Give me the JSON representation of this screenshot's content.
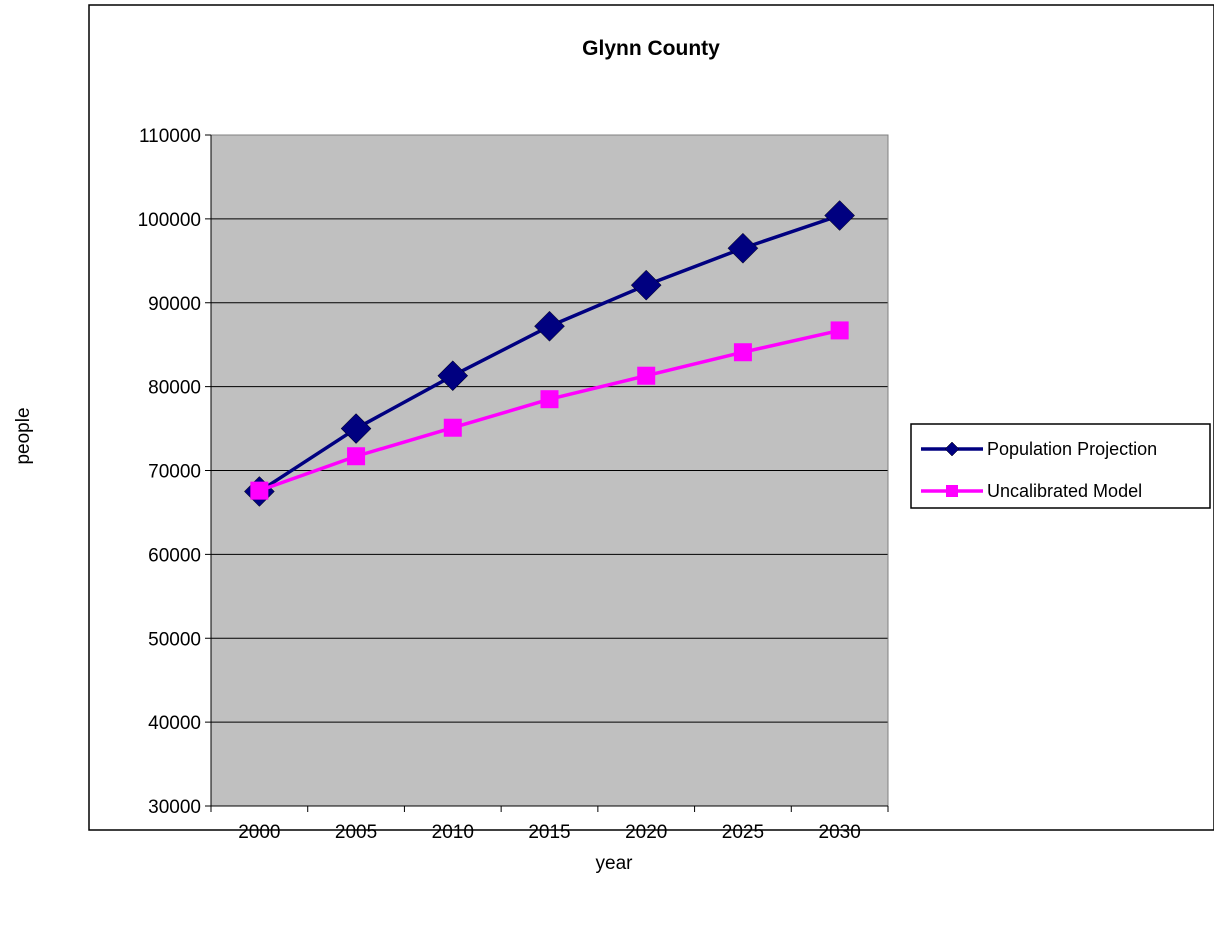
{
  "chart_data": {
    "type": "line",
    "title": "Glynn County",
    "xlabel": "year",
    "ylabel": "people",
    "categories": [
      "2000",
      "2005",
      "2010",
      "2015",
      "2020",
      "2025",
      "2030"
    ],
    "ylim": [
      30000,
      110000
    ],
    "yticks": [
      "30000",
      "40000",
      "50000",
      "60000",
      "70000",
      "80000",
      "90000",
      "100000",
      "110000"
    ],
    "grid": true,
    "plot_background": "#c0c0c0",
    "legend_position": "right",
    "series": [
      {
        "name": "Population Projection",
        "marker": "diamond",
        "color": "#000080",
        "values": [
          67500,
          75000,
          81300,
          87200,
          92100,
          96500,
          100400
        ]
      },
      {
        "name": "Uncalibrated Model",
        "marker": "square",
        "color": "#ff00ff",
        "values": [
          67600,
          71700,
          75100,
          78500,
          81300,
          84100,
          86700
        ]
      }
    ]
  }
}
